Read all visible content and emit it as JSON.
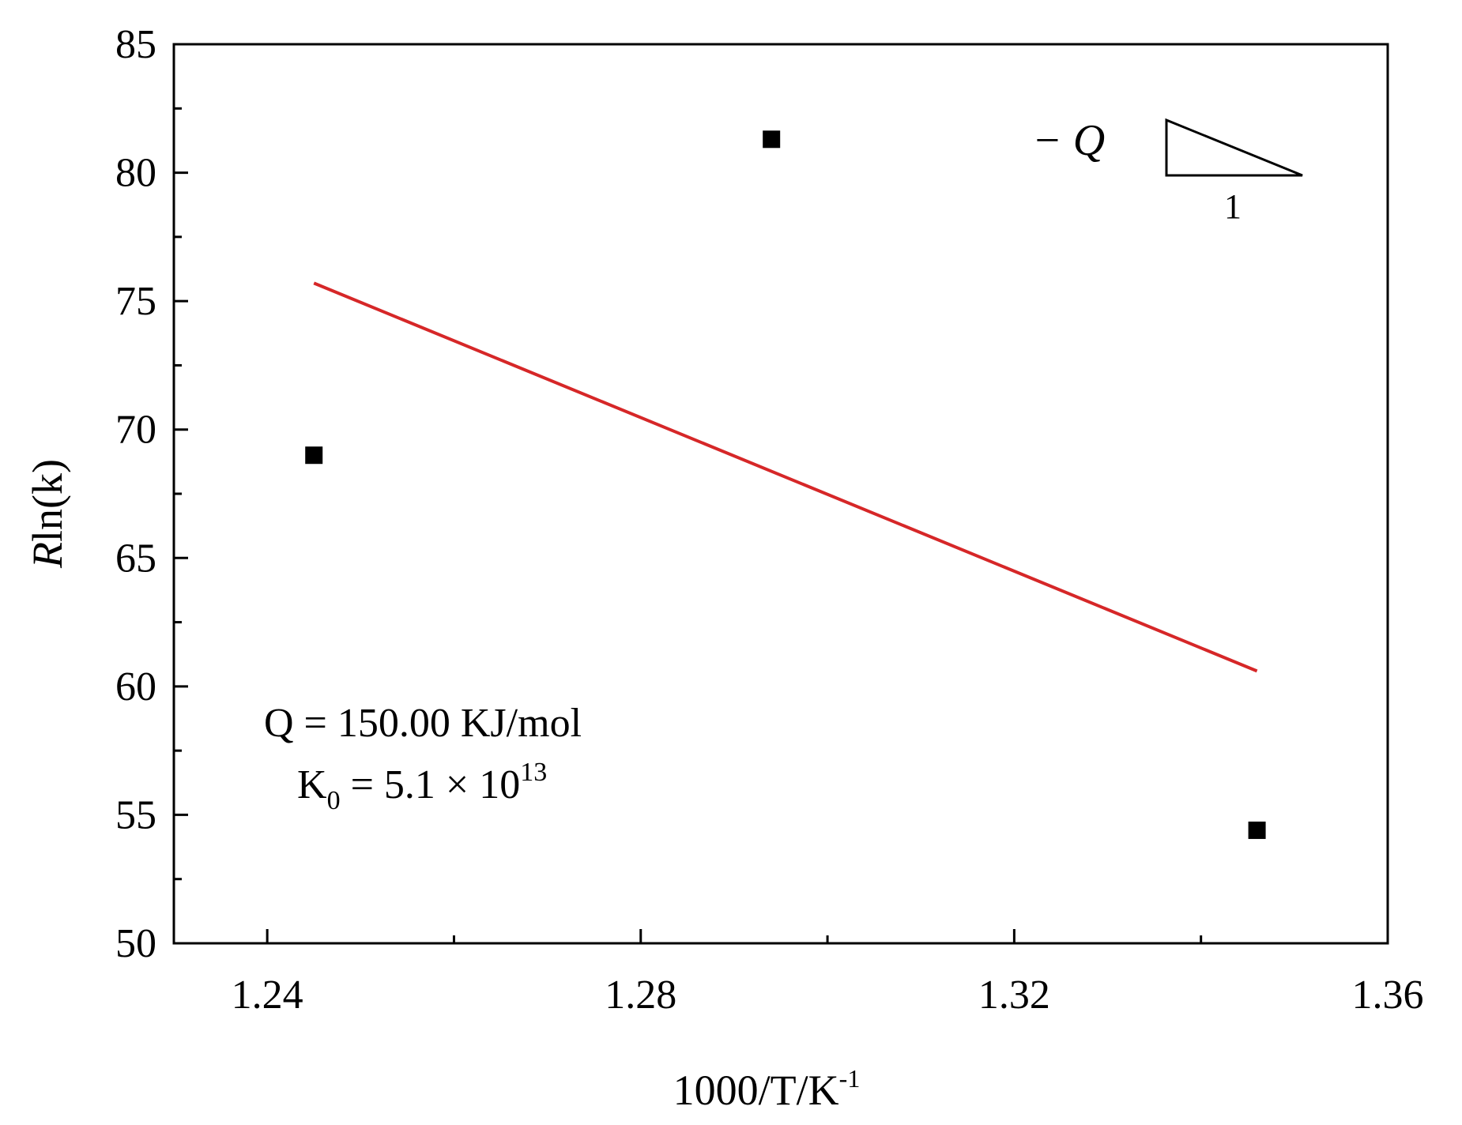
{
  "chart_data": {
    "type": "scatter",
    "xlabel": "1000/T/K",
    "xlabel_superscript": "-1",
    "ylabel_italic": "R",
    "ylabel_rest": "ln(k)",
    "xlim": [
      1.23,
      1.36
    ],
    "ylim": [
      50,
      85
    ],
    "x_ticks": [
      1.24,
      1.28,
      1.32,
      1.36
    ],
    "x_tick_labels": [
      "1.24",
      "1.28",
      "1.32",
      "1.36"
    ],
    "y_ticks": [
      50,
      55,
      60,
      65,
      70,
      75,
      80,
      85
    ],
    "y_tick_labels": [
      "50",
      "55",
      "60",
      "65",
      "70",
      "75",
      "80",
      "85"
    ],
    "grid": false,
    "points": [
      {
        "x": 1.245,
        "y": 69.0
      },
      {
        "x": 1.294,
        "y": 81.3
      },
      {
        "x": 1.346,
        "y": 54.4
      }
    ],
    "fit_line": {
      "x": [
        1.245,
        1.346
      ],
      "y": [
        75.7,
        60.6
      ],
      "color": "#d62728"
    },
    "annotations": {
      "q_line": "Q = 150.00 KJ/mol",
      "k0_prefix": "K",
      "k0_subscript": "0",
      "k0_value": " = 5.1 × 10",
      "k0_exponent": "13",
      "slope_label": "− Q",
      "slope_run": "1"
    },
    "marker_color": "#000000"
  }
}
